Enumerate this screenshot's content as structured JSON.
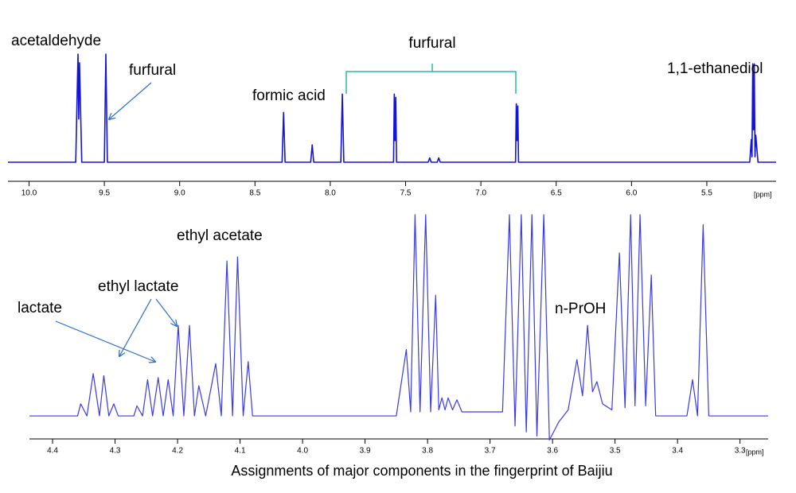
{
  "chart_data": [
    {
      "type": "line",
      "color": "#1414d8",
      "annotations": [
        "acetaldehyde",
        "furfural",
        "formic acid",
        "furfural",
        "1,1-ethanediol"
      ],
      "x_label": "[ppm]",
      "xlim": [
        10.14,
        5.04
      ],
      "ylim": [
        -10,
        100
      ],
      "xticks": [
        {
          "value": 10,
          "label": "10.0"
        },
        9.5,
        {
          "value": 9,
          "label": "9.0"
        },
        8.5,
        {
          "value": 8,
          "label": "8.0"
        },
        7.5,
        {
          "value": 7,
          "label": "7.0"
        },
        6.5,
        {
          "value": 6,
          "label": "6.0"
        },
        5.5
      ],
      "x": [
        10.14,
        9.69,
        9.675,
        9.67,
        9.665,
        9.65,
        9.5,
        9.49,
        9.48,
        8.32,
        8.31,
        8.3,
        8.13,
        8.12,
        8.11,
        7.93,
        7.92,
        7.91,
        7.58,
        7.575,
        7.57,
        7.565,
        7.56,
        7.35,
        7.34,
        7.33,
        7.29,
        7.28,
        7.27,
        6.77,
        6.765,
        6.76,
        6.755,
        6.75,
        5.215,
        5.205,
        5.2,
        5.195,
        5.19,
        5.185,
        5.18,
        5.175,
        5.16,
        5.04
      ],
      "values": [
        0,
        0,
        100,
        40,
        92,
        0,
        0,
        100,
        0,
        0,
        46,
        0,
        0,
        16,
        0,
        0,
        63,
        0,
        0,
        63,
        20,
        60,
        0,
        0,
        4,
        0,
        0,
        4,
        0,
        0,
        54,
        20,
        52,
        0,
        0,
        21,
        5,
        91,
        30,
        91,
        5,
        25,
        0,
        0
      ]
    },
    {
      "type": "line",
      "color": "#3a3ae6",
      "annotations": [
        "ethyl acetate",
        "ethyl lactate",
        "lactate",
        "n-PrOH"
      ],
      "x_label": "[ppm]",
      "xlim": [
        4.437,
        3.255
      ],
      "ylim": [
        -15,
        100
      ],
      "xticks": [
        4.4,
        4.3,
        4.2,
        4.1,
        {
          "value": 4,
          "label": "4.0"
        },
        3.9,
        3.8,
        3.7,
        3.6,
        3.5,
        3.4,
        3.3
      ],
      "x": [
        4.437,
        4.36,
        4.355,
        4.345,
        4.335,
        4.325,
        4.318,
        4.31,
        4.302,
        4.295,
        4.27,
        4.265,
        4.256,
        4.248,
        4.24,
        4.231,
        4.223,
        4.215,
        4.207,
        4.199,
        4.19,
        4.181,
        4.173,
        4.166,
        4.155,
        4.139,
        4.13,
        4.121,
        4.112,
        4.104,
        4.095,
        4.087,
        4.08,
        3.85,
        3.834,
        3.827,
        3.82,
        3.812,
        3.803,
        3.795,
        3.787,
        3.782,
        3.777,
        3.772,
        3.767,
        3.76,
        3.753,
        3.745,
        3.68,
        3.669,
        3.66,
        3.65,
        3.642,
        3.633,
        3.625,
        3.614,
        3.605,
        3.59,
        3.575,
        3.561,
        3.552,
        3.544,
        3.536,
        3.529,
        3.52,
        3.505,
        3.493,
        3.484,
        3.475,
        3.468,
        3.46,
        3.451,
        3.442,
        3.435,
        3.385,
        3.376,
        3.368,
        3.359,
        3.35,
        3.255
      ],
      "values": [
        0,
        0,
        6,
        0,
        21,
        0,
        20,
        0,
        6,
        0,
        0,
        5,
        0,
        18,
        0,
        19,
        0,
        18,
        0,
        45,
        0,
        45,
        0,
        15,
        0,
        26,
        0,
        77,
        0,
        79,
        0,
        27,
        0,
        0,
        33,
        2,
        100,
        2,
        100,
        2,
        60,
        3,
        9,
        3,
        9,
        3,
        8,
        2,
        2,
        100,
        -5,
        100,
        -8,
        100,
        -10,
        100,
        -12,
        -3,
        3,
        28,
        10,
        45,
        12,
        17,
        6,
        3,
        81,
        4,
        100,
        5,
        100,
        5,
        70,
        0,
        0,
        18,
        0,
        95,
        0,
        0
      ]
    }
  ],
  "caption": "Assignments of major components in the fingerprint of  Baijiu"
}
